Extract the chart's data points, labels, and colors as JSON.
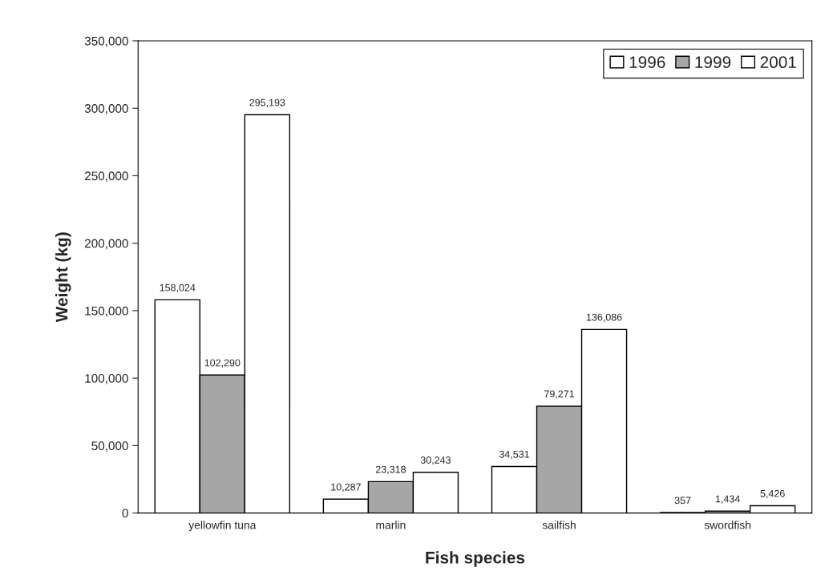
{
  "chart_data": {
    "type": "bar",
    "xlabel": "Fish species",
    "ylabel": "Weight (kg)",
    "categories": [
      "yellowfin tuna",
      "marlin",
      "sailfish",
      "swordfish"
    ],
    "series": [
      {
        "name": "1996",
        "color": "#ffffff",
        "values": [
          158024,
          10287,
          34531,
          357
        ],
        "value_labels": [
          "158,024",
          "10,287",
          "34,531",
          "357"
        ]
      },
      {
        "name": "1999",
        "color": "#a6a6a6",
        "values": [
          102290,
          23318,
          79271,
          1434
        ],
        "value_labels": [
          "102,290",
          "23,318",
          "79,271",
          "1,434"
        ]
      },
      {
        "name": "2001",
        "color": "#ffffff",
        "values": [
          295193,
          30243,
          136086,
          5426
        ],
        "value_labels": [
          "295,193",
          "30,243",
          "136,086",
          "5,426"
        ]
      }
    ],
    "ylim": [
      0,
      350000
    ],
    "yticks": [
      {
        "value": 0,
        "label": "0"
      },
      {
        "value": 50000,
        "label": "50,000"
      },
      {
        "value": 100000,
        "label": "100,000"
      },
      {
        "value": 150000,
        "label": "150,000"
      },
      {
        "value": 200000,
        "label": "200,000"
      },
      {
        "value": 250000,
        "label": "250,000"
      },
      {
        "value": 300000,
        "label": "300,000"
      },
      {
        "value": 350000,
        "label": "350,000"
      }
    ],
    "legend": "top right",
    "grid": false
  }
}
